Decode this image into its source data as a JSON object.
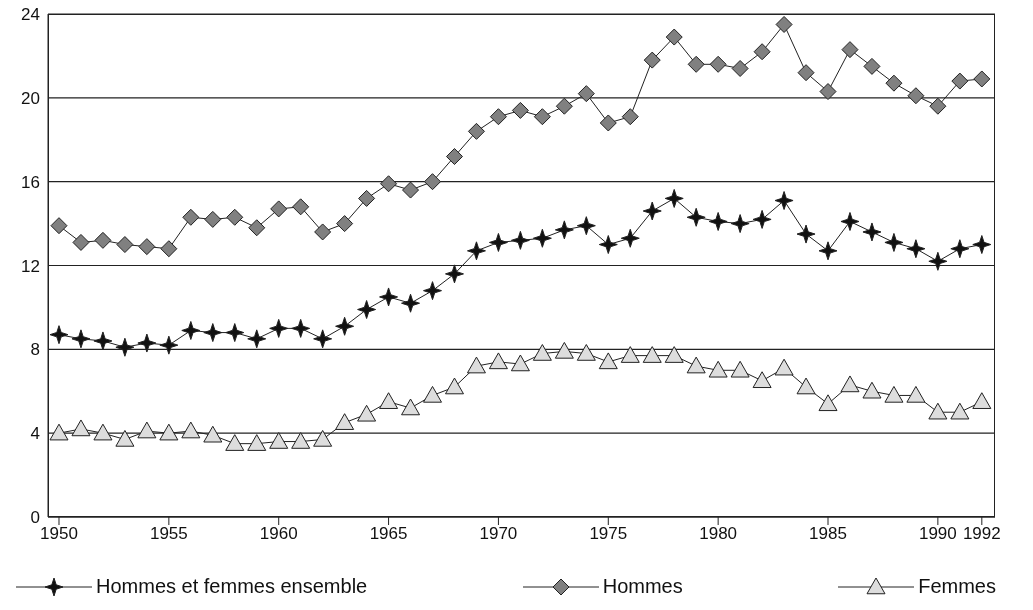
{
  "chart_data": {
    "type": "line",
    "x": [
      1950,
      1951,
      1952,
      1953,
      1954,
      1955,
      1956,
      1957,
      1958,
      1959,
      1960,
      1961,
      1962,
      1963,
      1964,
      1965,
      1966,
      1967,
      1968,
      1969,
      1970,
      1971,
      1972,
      1973,
      1974,
      1975,
      1976,
      1977,
      1978,
      1979,
      1980,
      1981,
      1982,
      1983,
      1984,
      1985,
      1986,
      1987,
      1988,
      1989,
      1990,
      1991,
      1992
    ],
    "series": [
      {
        "name": "Hommes et femmes ensemble",
        "color": "#111111",
        "marker": "star",
        "values": [
          8.7,
          8.5,
          8.4,
          8.1,
          8.3,
          8.2,
          8.9,
          8.8,
          8.8,
          8.5,
          9.0,
          9.0,
          8.5,
          9.1,
          9.9,
          10.5,
          10.2,
          10.8,
          11.6,
          12.7,
          13.1,
          13.2,
          13.3,
          13.7,
          13.9,
          13.0,
          13.3,
          14.6,
          15.2,
          14.3,
          14.1,
          14.0,
          14.2,
          15.1,
          13.5,
          12.7,
          14.1,
          13.6,
          13.1,
          12.8,
          12.2,
          12.8,
          13.0
        ]
      },
      {
        "name": "Hommes",
        "color": "#808080",
        "marker": "diamond",
        "values": [
          13.9,
          13.1,
          13.2,
          13.0,
          12.9,
          12.8,
          14.3,
          14.2,
          14.3,
          13.8,
          14.7,
          14.8,
          13.6,
          14.0,
          15.2,
          15.9,
          15.6,
          16.0,
          17.2,
          18.4,
          19.1,
          19.4,
          19.1,
          19.6,
          20.2,
          18.8,
          19.1,
          21.8,
          22.9,
          21.6,
          21.6,
          21.4,
          22.2,
          23.5,
          21.2,
          20.3,
          22.3,
          21.5,
          20.7,
          20.1,
          19.6,
          20.8,
          20.9
        ]
      },
      {
        "name": "Femmes",
        "color": "#dddddd",
        "marker": "triangle",
        "values": [
          4.0,
          4.2,
          4.0,
          3.7,
          4.1,
          4.0,
          4.1,
          3.9,
          3.5,
          3.5,
          3.6,
          3.6,
          3.7,
          4.5,
          4.9,
          5.5,
          5.2,
          5.8,
          6.2,
          7.2,
          7.4,
          7.3,
          7.8,
          7.9,
          7.8,
          7.4,
          7.7,
          7.7,
          7.7,
          7.2,
          7.0,
          7.0,
          6.5,
          7.1,
          6.2,
          5.4,
          6.3,
          6.0,
          5.8,
          5.8,
          5.0,
          5.0,
          5.5
        ]
      }
    ],
    "xlim": [
      1949.5,
      1992.6
    ],
    "xticks": [
      1950,
      1955,
      1960,
      1965,
      1970,
      1975,
      1980,
      1985,
      1990,
      1992
    ],
    "ylim": [
      0,
      24
    ],
    "yticks": [
      0,
      4,
      8,
      12,
      16,
      20,
      24
    ],
    "grid": "y",
    "legend": "bottom"
  }
}
